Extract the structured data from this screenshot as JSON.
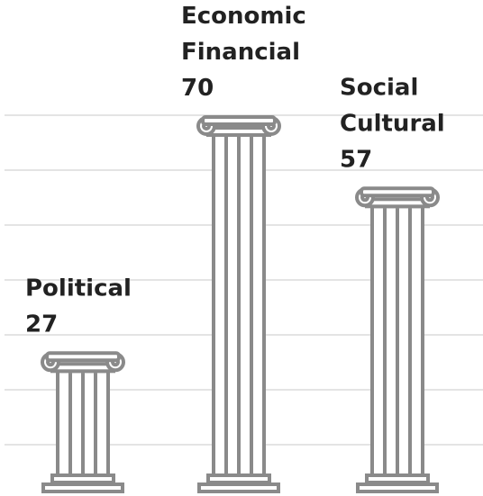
{
  "chart_data": {
    "type": "pictorial_bar",
    "categories": [
      [
        "Political"
      ],
      [
        "Economic",
        "Financial"
      ],
      [
        "Social",
        "Cultural"
      ]
    ],
    "values": [
      27,
      70,
      57
    ],
    "color": "#8a8a8a",
    "ylim": [
      0,
      75
    ],
    "yticks": [
      10,
      20,
      30,
      40,
      50,
      60,
      70
    ],
    "grid": true
  }
}
